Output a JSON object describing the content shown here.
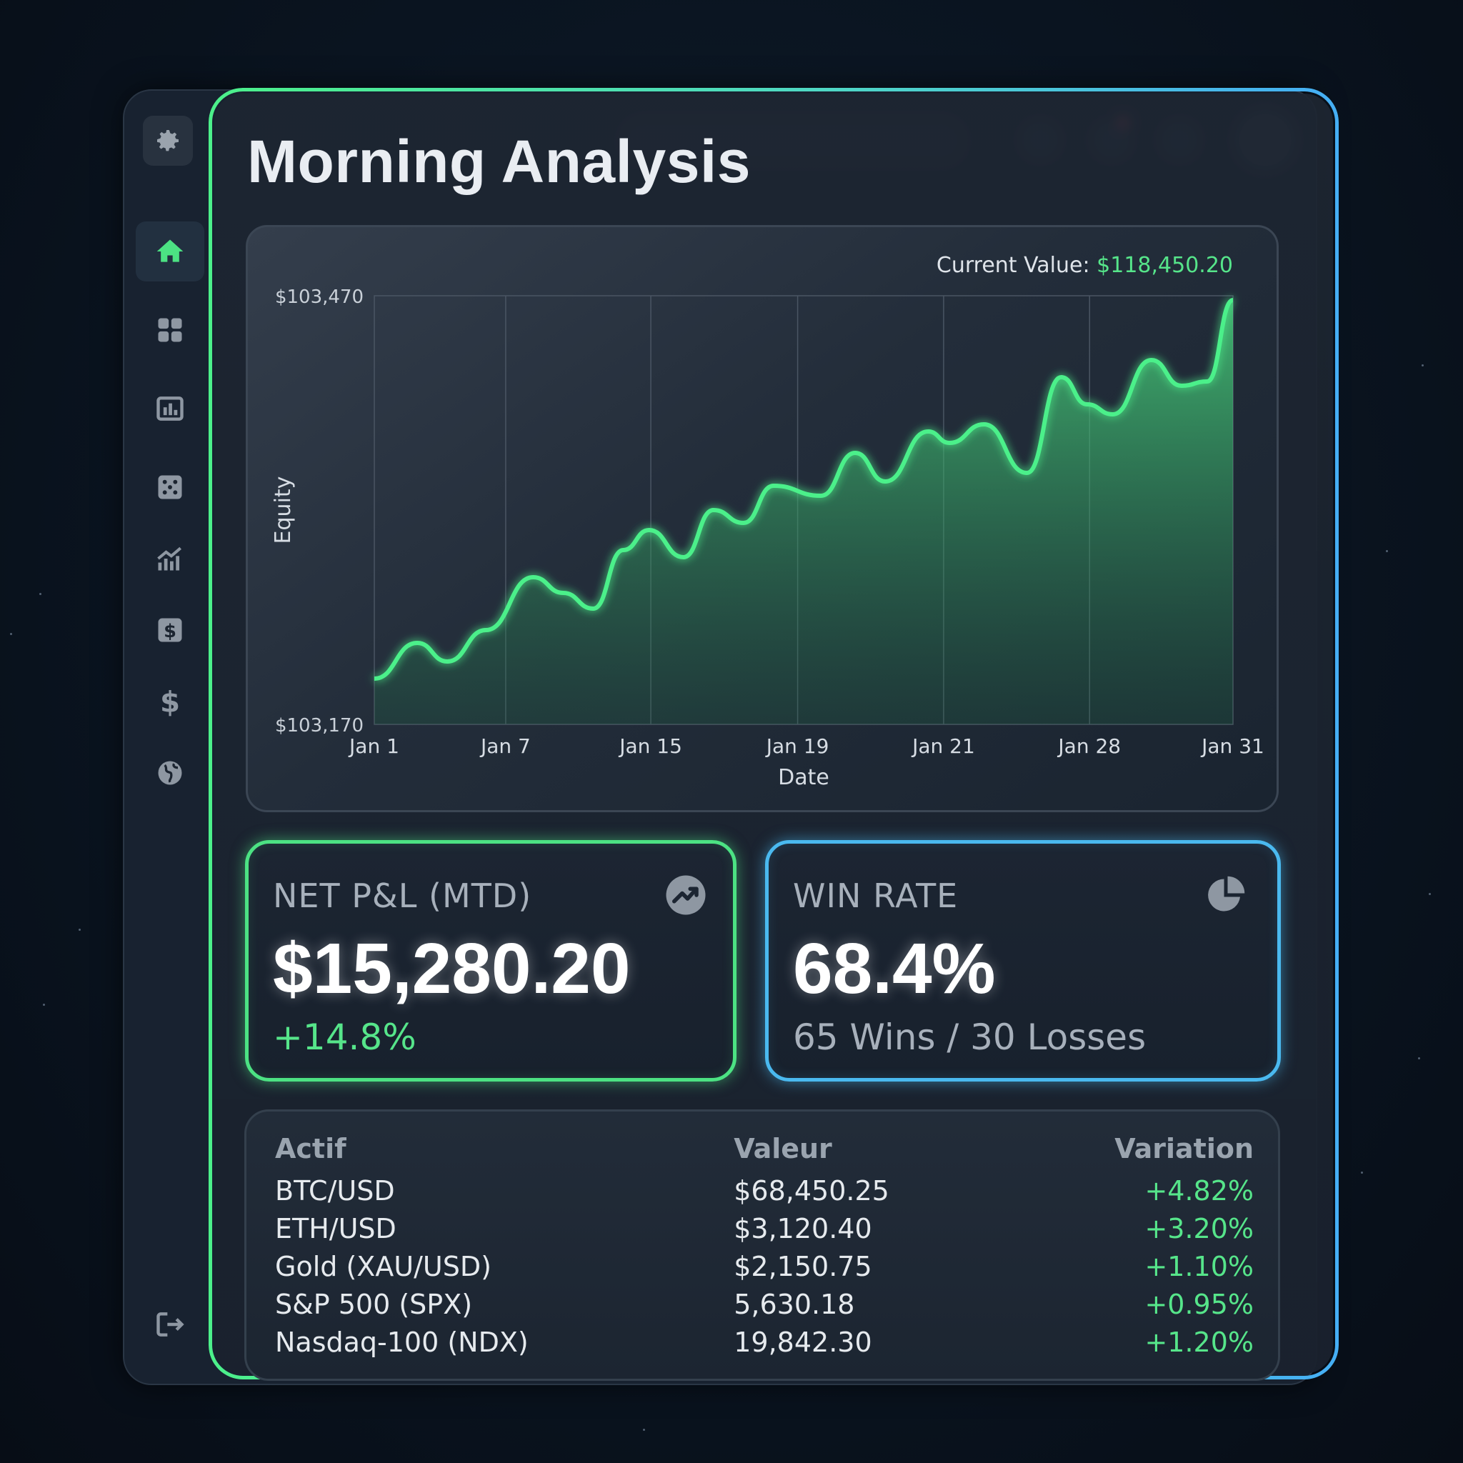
{
  "page": {
    "title": "Morning Analysis"
  },
  "chart": {
    "current_value_label": "Current Value:",
    "current_value": "$118,450.20"
  },
  "chart_data": {
    "type": "area",
    "ylabel": "Equity",
    "xlabel": "Date",
    "y_tick_labels": [
      "$103,470",
      "$103,170"
    ],
    "x_tick_labels": [
      "Jan 1",
      "Jan 7",
      "Jan 15",
      "Jan 19",
      "Jan 21",
      "Jan 28",
      "Jan 31"
    ],
    "ylim": [
      103170,
      103470
    ],
    "grid": "vertical",
    "series": [
      {
        "color": "#4cf08a",
        "points": [
          [
            0.0,
            103202
          ],
          [
            0.05,
            103227
          ],
          [
            0.085,
            103214
          ],
          [
            0.13,
            103236
          ],
          [
            0.185,
            103273
          ],
          [
            0.22,
            103262
          ],
          [
            0.255,
            103251
          ],
          [
            0.29,
            103292
          ],
          [
            0.32,
            103306
          ],
          [
            0.36,
            103287
          ],
          [
            0.395,
            103320
          ],
          [
            0.43,
            103311
          ],
          [
            0.465,
            103337
          ],
          [
            0.52,
            103330
          ],
          [
            0.56,
            103360
          ],
          [
            0.595,
            103340
          ],
          [
            0.645,
            103375
          ],
          [
            0.67,
            103367
          ],
          [
            0.71,
            103380
          ],
          [
            0.76,
            103346
          ],
          [
            0.8,
            103413
          ],
          [
            0.83,
            103394
          ],
          [
            0.86,
            103387
          ],
          [
            0.905,
            103425
          ],
          [
            0.94,
            103407
          ],
          [
            0.97,
            103410
          ],
          [
            1.0,
            103467
          ]
        ]
      }
    ]
  },
  "kpis": {
    "pnl": {
      "label": "NET P&L (MTD)",
      "value": "$15,280.20",
      "sub": "+14.8%",
      "icon": "trend-up-icon"
    },
    "win": {
      "label": "WIN RATE",
      "value": "68.4%",
      "sub": "65 Wins / 30 Losses",
      "icon": "pie-chart-icon"
    }
  },
  "table": {
    "headers": [
      "Actif",
      "Valeur",
      "Variation"
    ],
    "rows": [
      [
        "BTC/USD",
        "$68,450.25",
        "+4.82%"
      ],
      [
        "ETH/USD",
        "$3,120.40",
        "+3.20%"
      ],
      [
        "Gold (XAU/USD)",
        "$2,150.75",
        "+1.10%"
      ],
      [
        "S&P 500 (SPX)",
        "5,630.18",
        "+0.95%"
      ],
      [
        "Nasdaq-100 (NDX)",
        "19,842.30",
        "+1.20%"
      ]
    ]
  },
  "sidebar": {
    "items": [
      {
        "icon": "gear-icon"
      },
      {
        "icon": "home-icon",
        "active": true
      },
      {
        "icon": "grid-icon"
      },
      {
        "icon": "bar-chart-icon"
      },
      {
        "icon": "dice-icon"
      },
      {
        "icon": "trend-chart-icon"
      },
      {
        "icon": "dollar-box-icon"
      },
      {
        "icon": "dollar-icon"
      },
      {
        "icon": "globe-icon"
      },
      {
        "icon": "logout-icon"
      }
    ]
  },
  "colors": {
    "accent_green": "#4cf08a",
    "accent_blue": "#45aef5",
    "positive": "#56e58a",
    "background": "#0a1420"
  }
}
